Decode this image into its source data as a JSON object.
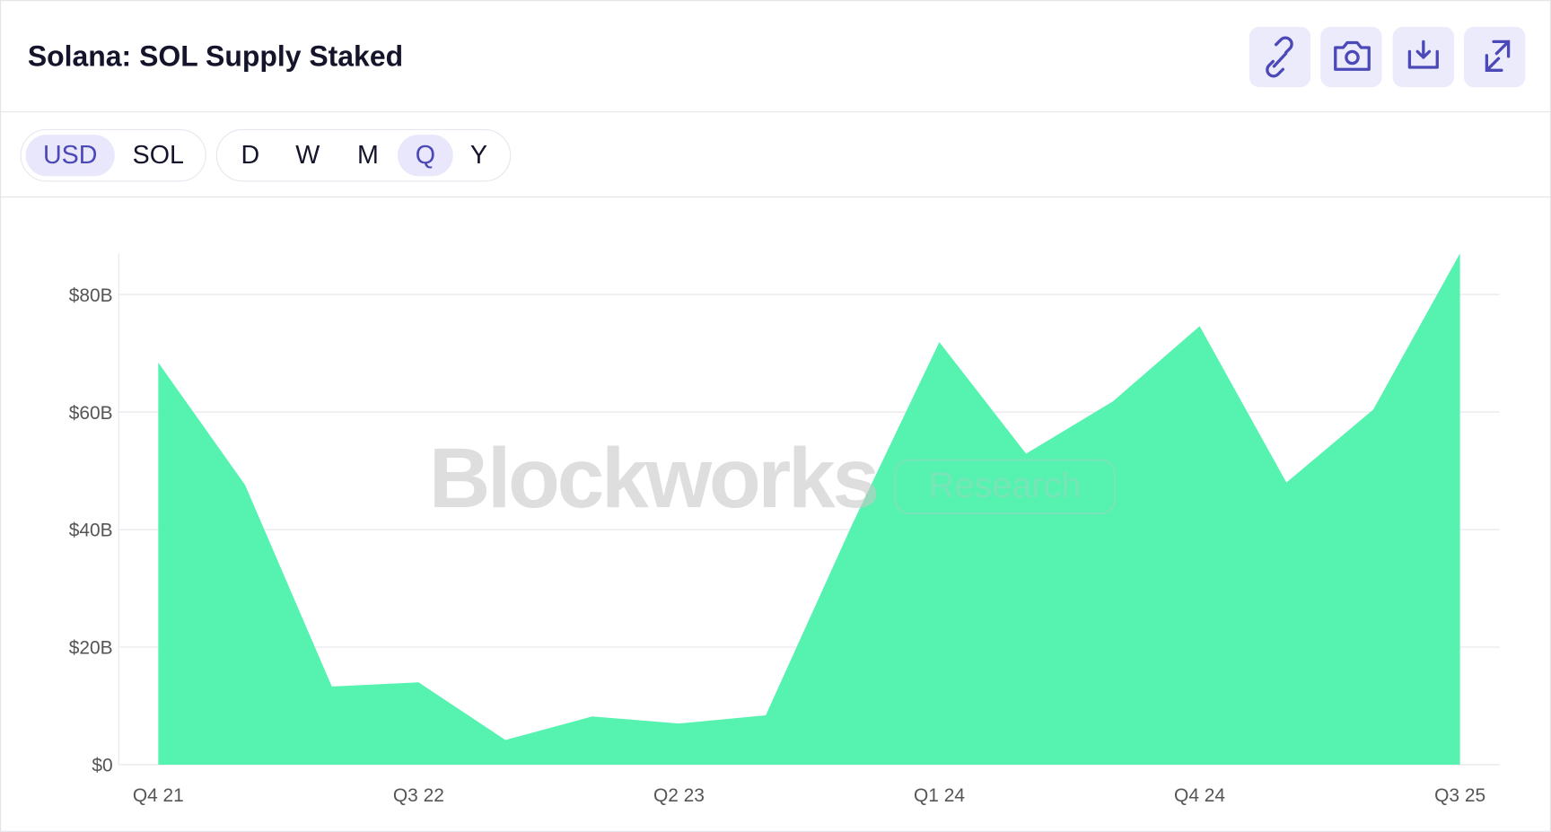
{
  "header": {
    "title": "Solana: SOL Supply Staked"
  },
  "toolbar": {
    "units": [
      "USD",
      "SOL"
    ],
    "selected_unit": "USD",
    "periods": [
      "D",
      "W",
      "M",
      "Q",
      "Y"
    ],
    "selected_period": "Q"
  },
  "watermark": {
    "brand": "Blockworks",
    "tag": "Research"
  },
  "chart_data": {
    "type": "area",
    "color": "#55f2b0",
    "categories": [
      "Q4 21",
      null,
      null,
      "Q3 22",
      null,
      null,
      "Q2 23",
      null,
      null,
      "Q1 24",
      null,
      null,
      "Q4 24",
      null,
      null,
      "Q3 25"
    ],
    "values": [
      68.4,
      47.6,
      13.3,
      14,
      4.2,
      8.2,
      7,
      8.4,
      41,
      71.9,
      52.9,
      61.8,
      74.6,
      48,
      60.4,
      87
    ],
    "ylim": [
      0,
      87
    ],
    "yticks": [
      {
        "value": 0,
        "label": "$0"
      },
      {
        "value": 20,
        "label": "$20B"
      },
      {
        "value": 40,
        "label": "$40B"
      },
      {
        "value": 60,
        "label": "$60B"
      },
      {
        "value": 80,
        "label": "$80B"
      }
    ],
    "grid": true
  }
}
